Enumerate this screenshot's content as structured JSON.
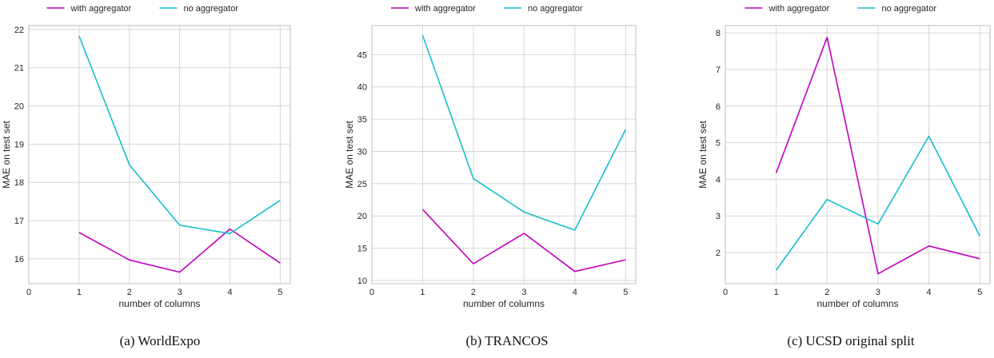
{
  "chart_data": [
    {
      "type": "line",
      "caption": "(a) WorldExpo",
      "xlabel": "number of columns",
      "ylabel": "MAE on test set",
      "xlim": [
        0,
        5.2
      ],
      "ylim": [
        15.35,
        22.1
      ],
      "xticks": [
        0,
        1,
        2,
        3,
        4,
        5
      ],
      "yticks": [
        16,
        17,
        18,
        19,
        20,
        21,
        22
      ],
      "grid": true,
      "legend_position": "top-center",
      "x": [
        1,
        2,
        3,
        4,
        5
      ],
      "series": [
        {
          "name": "with aggregator",
          "color": "#c000c0",
          "values": [
            16.69,
            15.97,
            15.65,
            16.78,
            15.89
          ]
        },
        {
          "name": "no aggregator",
          "color": "#17becf",
          "values": [
            21.83,
            18.46,
            16.88,
            16.66,
            17.53
          ]
        }
      ]
    },
    {
      "type": "line",
      "caption": "(b) TRANCOS",
      "xlabel": "number of columns",
      "ylabel": "MAE on test set",
      "xlim": [
        0,
        5.2
      ],
      "ylim": [
        9.5,
        49.5
      ],
      "xticks": [
        0,
        1,
        2,
        3,
        4,
        5
      ],
      "yticks": [
        10,
        15,
        20,
        25,
        30,
        35,
        40,
        45
      ],
      "grid": true,
      "legend_position": "top-center",
      "x": [
        1,
        2,
        3,
        4,
        5
      ],
      "series": [
        {
          "name": "with aggregator",
          "color": "#c000c0",
          "values": [
            21.0,
            12.6,
            17.3,
            11.4,
            13.2
          ]
        },
        {
          "name": "no aggregator",
          "color": "#17becf",
          "values": [
            48.0,
            25.8,
            20.6,
            17.8,
            33.4
          ]
        }
      ]
    },
    {
      "type": "line",
      "caption": "(c) UCSD original split",
      "xlabel": "number of columns",
      "ylabel": "MAE on test set",
      "xlim": [
        0,
        5.2
      ],
      "ylim": [
        1.15,
        8.2
      ],
      "xticks": [
        0,
        1,
        2,
        3,
        4,
        5
      ],
      "yticks": [
        2,
        3,
        4,
        5,
        6,
        7,
        8
      ],
      "grid": true,
      "legend_position": "top-center",
      "x": [
        1,
        2,
        3,
        4,
        5
      ],
      "series": [
        {
          "name": "with aggregator",
          "color": "#c000c0",
          "values": [
            4.18,
            7.88,
            1.42,
            2.18,
            1.83
          ]
        },
        {
          "name": "no aggregator",
          "color": "#17becf",
          "values": [
            1.52,
            3.45,
            2.78,
            5.18,
            2.45
          ]
        }
      ]
    }
  ]
}
